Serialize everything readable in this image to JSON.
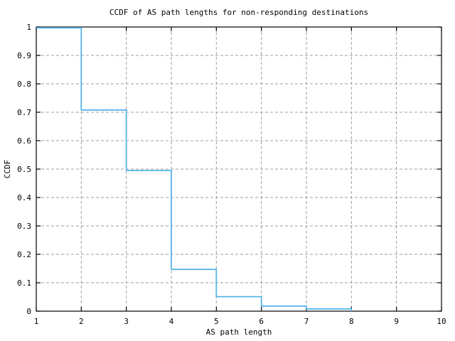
{
  "chart_data": {
    "type": "line",
    "subtype": "step-post-ccdf",
    "title": "CCDF of AS path lengths for non-responding destinations",
    "xlabel": "AS path length",
    "ylabel": "CCDF",
    "xlim": [
      1,
      10
    ],
    "ylim": [
      0,
      1
    ],
    "x_ticks": [
      1,
      2,
      3,
      4,
      5,
      6,
      7,
      8,
      9,
      10
    ],
    "x_tick_labels": [
      "1",
      "2",
      "3",
      "4",
      "5",
      "6",
      "7",
      "8",
      "9",
      "10"
    ],
    "y_ticks": [
      0,
      0.1,
      0.2,
      0.3,
      0.4,
      0.5,
      0.6,
      0.7,
      0.8,
      0.9,
      1
    ],
    "y_tick_labels": [
      "0",
      "0.1",
      "0.2",
      "0.3",
      "0.4",
      "0.5",
      "0.6",
      "0.7",
      "0.8",
      "0.9",
      "1"
    ],
    "grid": true,
    "grid_style": "dashed",
    "legend_position": "none",
    "series": [
      {
        "name": "CCDF of AS path length",
        "step": "post",
        "x": [
          1,
          2,
          3,
          4,
          5,
          6,
          7,
          8
        ],
        "y": [
          0.997,
          0.708,
          0.495,
          0.147,
          0.051,
          0.018,
          0.008,
          0
        ],
        "color": "#56b4e9"
      }
    ],
    "colors": {
      "line": "#56b4e9",
      "grid": "#9e9e9e",
      "axis": "#000000",
      "background": "#ffffff"
    }
  }
}
